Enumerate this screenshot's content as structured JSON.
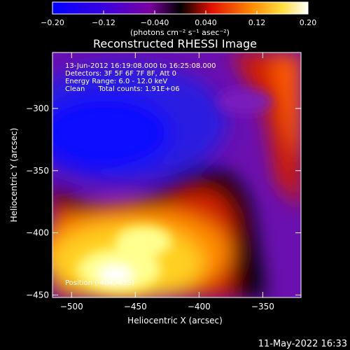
{
  "footer": {
    "timestamp": "11-May-2022 16:33"
  },
  "colorbar": {
    "ticks": [
      "-0.20",
      "-0.12",
      "-0.040",
      "0.040",
      "0.12",
      "0.20"
    ],
    "range": [
      -0.2,
      0.2
    ],
    "units": "(photons cm⁻² s⁻¹ asec⁻²)"
  },
  "chart_data": {
    "type": "heatmap",
    "title": "Reconstructed RHESSI Image",
    "xlabel": "Heliocentric X (arcsec)",
    "ylabel": "Heliocentric Y (arcsec)",
    "xlim": [
      -515,
      -320
    ],
    "ylim": [
      -452,
      -255
    ],
    "x_ticks": [
      {
        "value": -500,
        "label": "−500"
      },
      {
        "value": -450,
        "label": "−450"
      },
      {
        "value": -400,
        "label": "−400"
      },
      {
        "value": -350,
        "label": "−350"
      }
    ],
    "y_ticks": [
      {
        "value": -300,
        "label": "−300"
      },
      {
        "value": -350,
        "label": "−350"
      },
      {
        "value": -400,
        "label": "−400"
      },
      {
        "value": -450,
        "label": "−450"
      }
    ],
    "colormap": [
      "#0000ff",
      "#7a00a0",
      "#000000",
      "#ff6000",
      "#ffff80",
      "#ffffff"
    ],
    "annotations": [
      "13-Jun-2012 16:19:08.000 to 16:25:08.000",
      "Detectors: 3F 5F 6F 7F 8F, Att 0",
      "Energy Range: 6.0 - 12.0 keV",
      "Clean      Total counts: 1.91E+06"
    ],
    "position_label": "Position (-464,-435)"
  }
}
